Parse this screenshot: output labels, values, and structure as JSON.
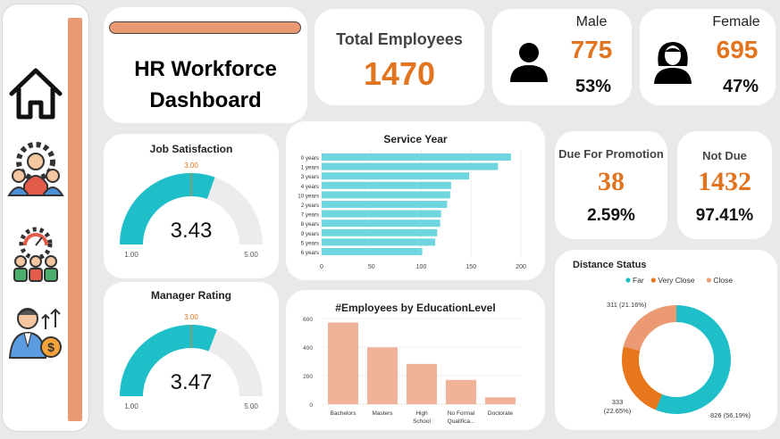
{
  "title": {
    "line1": "HR Workforce",
    "line2": "Dashboard"
  },
  "nav": [
    {
      "icon": "home-icon"
    },
    {
      "icon": "team-settings-icon"
    },
    {
      "icon": "performance-team-icon"
    },
    {
      "icon": "salary-growth-icon"
    }
  ],
  "total_employees": {
    "label": "Total Employees",
    "value": "1470"
  },
  "male": {
    "label": "Male",
    "value": "775",
    "pct": "53%",
    "icon": "male-user-icon"
  },
  "female": {
    "label": "Female",
    "value": "695",
    "pct": "47%",
    "icon": "female-user-icon"
  },
  "promotion": {
    "label": "Due For Promotion",
    "value": "38",
    "pct": "2.59%"
  },
  "not_due": {
    "label": "Not Due",
    "value": "1432",
    "pct": "97.41%"
  },
  "colors": {
    "accent": "#e2741f",
    "teal": "#1fbfc9",
    "bar_teal": "#6fd5df",
    "salmon": "#f0b39a",
    "orange_dark": "#e8761a",
    "salmon_donut": "#ec9a73",
    "gauge_track": "#ececec"
  },
  "chart_data": [
    {
      "type": "gauge",
      "title": "Job Satisfaction",
      "value": 3.43,
      "value_label": "3.43",
      "min": 1,
      "max": 5,
      "min_label": "1.00",
      "max_label": "5.00",
      "target": 3,
      "target_label": "3.00"
    },
    {
      "type": "gauge",
      "title": "Manager Rating",
      "value": 3.47,
      "value_label": "3.47",
      "min": 1,
      "max": 5,
      "min_label": "1.00",
      "max_label": "5.00",
      "target": 3,
      "target_label": "3.00"
    },
    {
      "type": "bar",
      "orientation": "horizontal",
      "title": "Service Year",
      "categories": [
        "0 years",
        "1 years",
        "3 years",
        "4 years",
        "10 years",
        "2 years",
        "7 years",
        "8 years",
        "9 years",
        "5 years",
        "6 years"
      ],
      "values": [
        190,
        177,
        148,
        130,
        129,
        126,
        120,
        119,
        116,
        114,
        101
      ],
      "xlim": [
        0,
        200
      ],
      "xticks": [
        "0",
        "50",
        "100",
        "150",
        "200"
      ]
    },
    {
      "type": "bar",
      "title": "#Employees by EducationLevel",
      "categories": [
        "Bachelors",
        "Masters",
        "High School",
        "No Formal Qualifica...",
        "Doctorate"
      ],
      "values": [
        572,
        398,
        282,
        170,
        48
      ],
      "ylim": [
        0,
        600
      ],
      "yticks": [
        "0",
        "200",
        "400",
        "600"
      ]
    },
    {
      "type": "pie",
      "donut": true,
      "title": "Distance Status",
      "legend": [
        "Far",
        "Very Close",
        "Close"
      ],
      "legend_position": "top",
      "slices": [
        {
          "name": "Far",
          "value": 826,
          "label": "826 (56.19%)"
        },
        {
          "name": "Very Close",
          "value": 333,
          "label_line1": "333",
          "label_line2": "(22.65%)"
        },
        {
          "name": "Close",
          "value": 311,
          "label": "311 (21.16%)"
        }
      ]
    }
  ]
}
